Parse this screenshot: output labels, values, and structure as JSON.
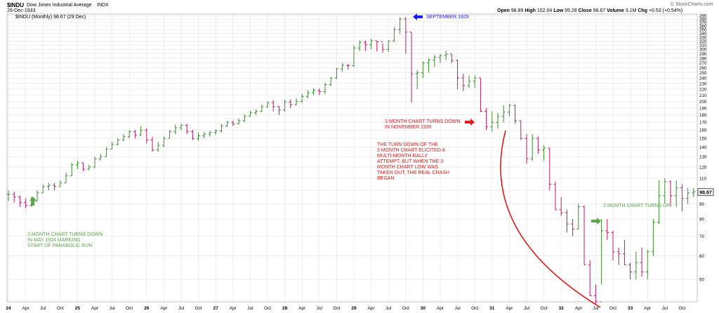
{
  "header": {
    "symbol": "$INDU",
    "name": "Dow Jones Industrial Average",
    "exchange": "INDX",
    "date": "29-Dec-1933",
    "copyright": "© StockCharts.com",
    "quote_labels": [
      "Open",
      "High",
      "Low",
      "Close",
      "Volume",
      "Chg"
    ],
    "quote_values": [
      "98.89",
      "102.04",
      "95.28",
      "98.67",
      "3.1M",
      "+0.53 (+0.54%)"
    ]
  },
  "chart_data": {
    "type": "line",
    "subtype": "ohlc-bars",
    "title": "$INDU Dow Jones Industrial Average INDX",
    "legend": "$INDU (Monthly) 98.67 (29 Dec)",
    "last_value_label": "98.67",
    "yscale": "log",
    "ylim": [
      42,
      395
    ],
    "y_ticks_labeled": [
      50,
      60,
      70,
      80,
      90,
      100,
      110,
      120,
      130,
      140,
      150,
      160,
      170,
      180,
      190,
      200,
      210,
      220,
      230,
      240,
      250,
      260,
      270,
      280,
      290,
      300,
      310,
      320,
      330,
      340,
      350,
      360,
      370,
      380,
      390
    ],
    "x_labels": [
      "24",
      "Apr",
      "Jul",
      "Oct",
      "25",
      "Apr",
      "Jul",
      "Oct",
      "26",
      "Apr",
      "Jul",
      "Oct",
      "27",
      "Apr",
      "Jul",
      "Oct",
      "28",
      "Apr",
      "Jul",
      "Oct",
      "29",
      "Apr",
      "Jul",
      "Oct",
      "30",
      "Apr",
      "Jul",
      "Oct",
      "31",
      "Apr",
      "Jul",
      "Oct",
      "32",
      "Apr",
      "Jul",
      "Oct",
      "33",
      "Apr",
      "Jul",
      "Oct"
    ],
    "grid": true,
    "series": [
      {
        "name": "$INDU (Monthly)",
        "close": [
          97,
          95,
          91,
          89,
          92,
          98,
          103,
          104,
          103,
          106,
          112,
          122,
          124,
          118,
          120,
          128,
          130,
          138,
          143,
          148,
          152,
          158,
          154,
          160,
          148,
          137,
          142,
          150,
          158,
          163,
          166,
          158,
          150,
          153,
          155,
          157,
          159,
          165,
          170,
          168,
          172,
          178,
          183,
          185,
          192,
          198,
          192,
          187,
          199,
          195,
          200,
          208,
          214,
          218,
          216,
          228,
          240,
          258,
          265,
          264,
          303,
          317,
          311,
          321,
          318,
          300,
          320,
          350,
          380,
          343,
          248,
          250,
          270,
          276,
          282,
          286,
          289,
          275,
          240,
          226,
          234,
          240,
          185,
          164,
          170,
          178,
          184,
          194,
          172,
          150,
          128,
          150,
          137,
          139,
          105,
          86,
          84,
          77,
          74,
          88,
          56,
          44,
          42,
          73,
          72,
          62,
          61,
          56,
          53,
          57,
          53,
          62,
          78,
          96,
          107,
          96,
          102,
          94,
          98,
          99
        ],
        "high": [
          100,
          99,
          96,
          94,
          95,
          100,
          105,
          106,
          106,
          108,
          115,
          124,
          126,
          124,
          122,
          130,
          133,
          140,
          146,
          150,
          155,
          160,
          160,
          165,
          162,
          152,
          146,
          152,
          160,
          167,
          168,
          168,
          160,
          157,
          158,
          159,
          161,
          168,
          172,
          172,
          175,
          181,
          186,
          188,
          195,
          200,
          202,
          193,
          203,
          203,
          205,
          212,
          218,
          222,
          221,
          231,
          242,
          260,
          270,
          268,
          310,
          322,
          321,
          326,
          320,
          314,
          322,
          356,
          385,
          385,
          343,
          255,
          273,
          280,
          288,
          290,
          297,
          289,
          277,
          248,
          245,
          245,
          240,
          190,
          185,
          183,
          194,
          196,
          195,
          172,
          155,
          155,
          152,
          142,
          139,
          107,
          95,
          86,
          80,
          90,
          89,
          58,
          48,
          80,
          80,
          73,
          64,
          68,
          57,
          62,
          64,
          63,
          80,
          108,
          110,
          108,
          108,
          105,
          102,
          102
        ],
        "low": [
          92,
          91,
          88,
          87,
          88,
          92,
          98,
          100,
          100,
          103,
          106,
          112,
          118,
          116,
          117,
          119,
          126,
          130,
          138,
          142,
          147,
          150,
          150,
          153,
          144,
          135,
          135,
          140,
          150,
          155,
          160,
          155,
          148,
          147,
          150,
          152,
          154,
          157,
          164,
          165,
          167,
          170,
          178,
          180,
          184,
          190,
          185,
          180,
          185,
          190,
          194,
          198,
          205,
          210,
          210,
          212,
          225,
          238,
          252,
          256,
          262,
          296,
          296,
          300,
          295,
          292,
          294,
          318,
          338,
          290,
          198,
          220,
          240,
          250,
          262,
          270,
          276,
          270,
          220,
          217,
          222,
          222,
          184,
          160,
          158,
          162,
          170,
          178,
          168,
          148,
          123,
          126,
          133,
          126,
          100,
          86,
          82,
          72,
          70,
          74,
          56,
          44,
          41,
          48,
          68,
          58,
          56,
          56,
          50,
          50,
          51,
          50,
          60,
          77,
          90,
          88,
          88,
          85,
          90,
          95
        ]
      }
    ],
    "annotations": [
      "SEPTEMBER 1929",
      "3 MONTH CHART TURNS DOWN\nIN NOVEMBER 1930",
      "THE TURN DOWN OF THE\n3 MONTH CHART ELICITED A\nMULTI-MONTH RALLY\nATTEMPT, BUT WHEN THE 3\nMONTH CHART LOW WAS\nTAKEN OUT, THE REAL CRASH\nBEGAN",
      "3 MONTH CHART TURNS UP",
      "3 MONTH CHART TURNS DOWN\nIN MAY 1924 MARKING\nSTART OF PARABOLIC RUN"
    ]
  },
  "colors": {
    "up": "#3a8a2a",
    "down": "#c2185b",
    "grid": "#dddddd",
    "blue": "#1a1aff",
    "red": "#e01818",
    "green": "#5aa84a",
    "gray": "#666666"
  }
}
